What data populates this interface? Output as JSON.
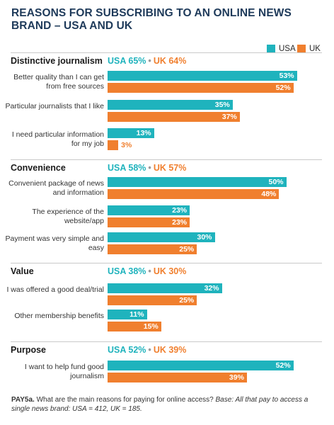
{
  "title": "REASONS FOR SUBSCRIBING TO AN ONLINE NEWS BRAND – USA AND UK",
  "colors": {
    "usa": "#1fb3bd",
    "uk": "#f07f2e",
    "title": "#1e3a5a"
  },
  "chart_data": {
    "type": "bar",
    "orientation": "horizontal",
    "legend": {
      "position": "top-right",
      "items": [
        "USA",
        "UK"
      ]
    },
    "series_names": [
      "USA",
      "UK"
    ],
    "sections": [
      {
        "name": "Distinctive journalism",
        "usa_total": "USA 65%",
        "uk_total": "UK 64%",
        "items": [
          {
            "label": "Better quality than I can get from free sources",
            "usa": 53,
            "uk": 52
          },
          {
            "label": "Particular journalists that I like",
            "usa": 35,
            "uk": 37
          },
          {
            "label": "I need particular information for my job",
            "usa": 13,
            "uk": 3
          }
        ]
      },
      {
        "name": "Convenience",
        "usa_total": "USA 58%",
        "uk_total": "UK 57%",
        "items": [
          {
            "label": "Convenient package of news and information",
            "usa": 50,
            "uk": 48
          },
          {
            "label": "The experience of the website/app",
            "usa": 23,
            "uk": 23
          },
          {
            "label": "Payment was very simple and easy",
            "usa": 30,
            "uk": 25
          }
        ]
      },
      {
        "name": "Value",
        "usa_total": "USA 38%",
        "uk_total": "UK 30%",
        "items": [
          {
            "label": "I was offered a good deal/trial",
            "usa": 32,
            "uk": 25
          },
          {
            "label": "Other membership benefits",
            "usa": 11,
            "uk": 15
          }
        ]
      },
      {
        "name": "Purpose",
        "usa_total": "USA 52%",
        "uk_total": "UK 39%",
        "items": [
          {
            "label": "I want to help fund good journalism",
            "usa": 52,
            "uk": 39
          }
        ]
      }
    ]
  },
  "footnote": {
    "code": "PAY5a.",
    "question": "What are the main reasons for paying for online access?",
    "base": "Base: All that pay to access a single news brand: USA = 412, UK = 185."
  }
}
